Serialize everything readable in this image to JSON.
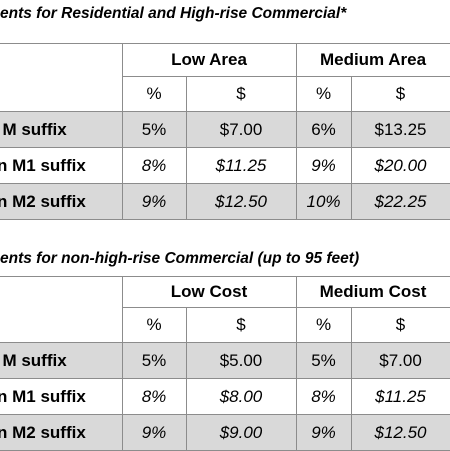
{
  "table1": {
    "heading": "ents for Residential and High-rise Commercial*",
    "groups": [
      "Low Area",
      "Medium Area"
    ],
    "units": [
      "%",
      "$",
      "%",
      "$"
    ],
    "rows": [
      {
        "label": "l M suffix",
        "values": [
          "5%",
          "$7.00",
          "6%",
          "$13.25"
        ]
      },
      {
        "label": "n M1 suffix",
        "values": [
          "8%",
          "$11.25",
          "9%",
          "$20.00"
        ]
      },
      {
        "label": "n M2 suffix",
        "values": [
          "9%",
          "$12.50",
          "10%",
          "$22.25"
        ]
      }
    ]
  },
  "table2": {
    "heading": "ents for non-high-rise Commercial (up to 95 feet)",
    "groups": [
      "Low Cost",
      "Medium Cost"
    ],
    "units": [
      "%",
      "$",
      "%",
      "$"
    ],
    "rows": [
      {
        "label": "l M suffix",
        "values": [
          "5%",
          "$5.00",
          "5%",
          "$7.00"
        ]
      },
      {
        "label": "n M1 suffix",
        "values": [
          "8%",
          "$8.00",
          "8%",
          "$11.25"
        ]
      },
      {
        "label": "n M2 suffix",
        "values": [
          "9%",
          "$9.00",
          "9%",
          "$12.50"
        ]
      }
    ]
  }
}
